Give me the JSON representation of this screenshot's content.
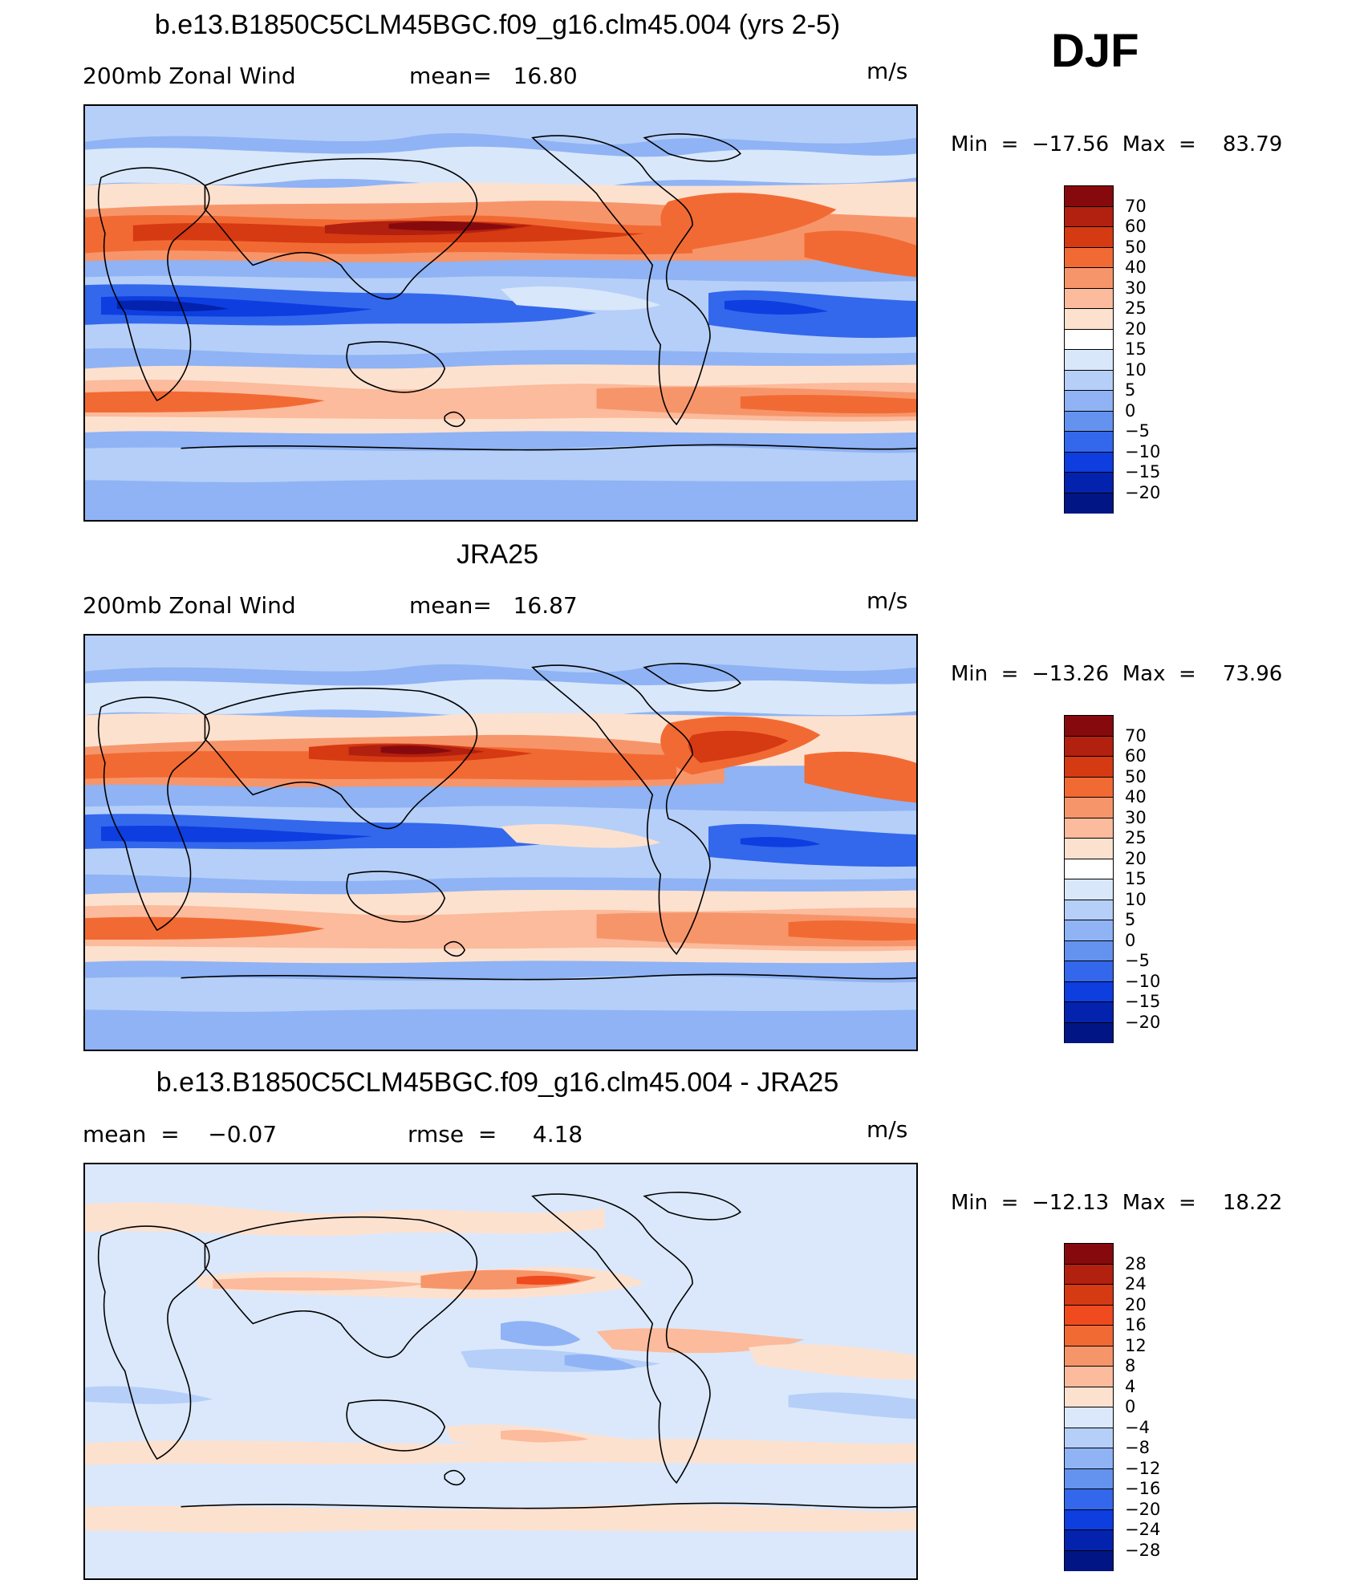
{
  "season": "DJF",
  "chart_data": [
    {
      "type": "heatmap",
      "title": "b.e13.B1850C5CLM45BGC.f09_g16.clm45.004 (yrs 2-5)",
      "left_label": "200mb Zonal Wind",
      "center_label": "mean=   16.80",
      "units": "m/s",
      "min_max": "Min  =  −17.56  Max  =    83.79",
      "min": -17.56,
      "max": 83.79,
      "mean": 16.8,
      "levels": [
        "70",
        "60",
        "50",
        "40",
        "30",
        "25",
        "20",
        "15",
        "10",
        "5",
        "0",
        "−5",
        "−10",
        "−15",
        "−20"
      ],
      "colors": [
        "#860a0d",
        "#b2200f",
        "#d63a12",
        "#f26a33",
        "#f7956a",
        "#fbbb9c",
        "#fde1cf",
        "#ffffff",
        "#d9e7fb",
        "#b5cff8",
        "#8fb3f4",
        "#6393ef",
        "#3368ec",
        "#0e3ee0",
        "#0322ae",
        "#021585"
      ]
    },
    {
      "type": "heatmap",
      "title": "JRA25",
      "left_label": "200mb Zonal Wind",
      "center_label": "mean=   16.87",
      "units": "m/s",
      "min_max": "Min  =  −13.26  Max  =    73.96",
      "min": -13.26,
      "max": 73.96,
      "mean": 16.87,
      "levels": [
        "70",
        "60",
        "50",
        "40",
        "30",
        "25",
        "20",
        "15",
        "10",
        "5",
        "0",
        "−5",
        "−10",
        "−15",
        "−20"
      ],
      "colors": [
        "#860a0d",
        "#b2200f",
        "#d63a12",
        "#f26a33",
        "#f7956a",
        "#fbbb9c",
        "#fde1cf",
        "#ffffff",
        "#d9e7fb",
        "#b5cff8",
        "#8fb3f4",
        "#6393ef",
        "#3368ec",
        "#0e3ee0",
        "#0322ae",
        "#021585"
      ]
    },
    {
      "type": "heatmap",
      "title": "b.e13.B1850C5CLM45BGC.f09_g16.clm45.004 - JRA25",
      "left_label": "mean  =    −0.07",
      "center_label": "rmse  =     4.18",
      "units": "m/s",
      "min_max": "Min  =  −12.13  Max  =    18.22",
      "min": -12.13,
      "max": 18.22,
      "mean": -0.07,
      "rmse": 4.18,
      "levels": [
        "28",
        "24",
        "20",
        "16",
        "12",
        "8",
        "4",
        "0",
        "−4",
        "−8",
        "−12",
        "−16",
        "−20",
        "−24",
        "−28"
      ],
      "colors": [
        "#860a0d",
        "#b2200f",
        "#d63a12",
        "#f04a1f",
        "#f26a33",
        "#f7956a",
        "#fbbb9c",
        "#fde1cf",
        "#dbe8fb",
        "#b5cff8",
        "#8fb3f4",
        "#6393ef",
        "#3368ec",
        "#0e3ee0",
        "#0322ae",
        "#021585"
      ]
    }
  ]
}
